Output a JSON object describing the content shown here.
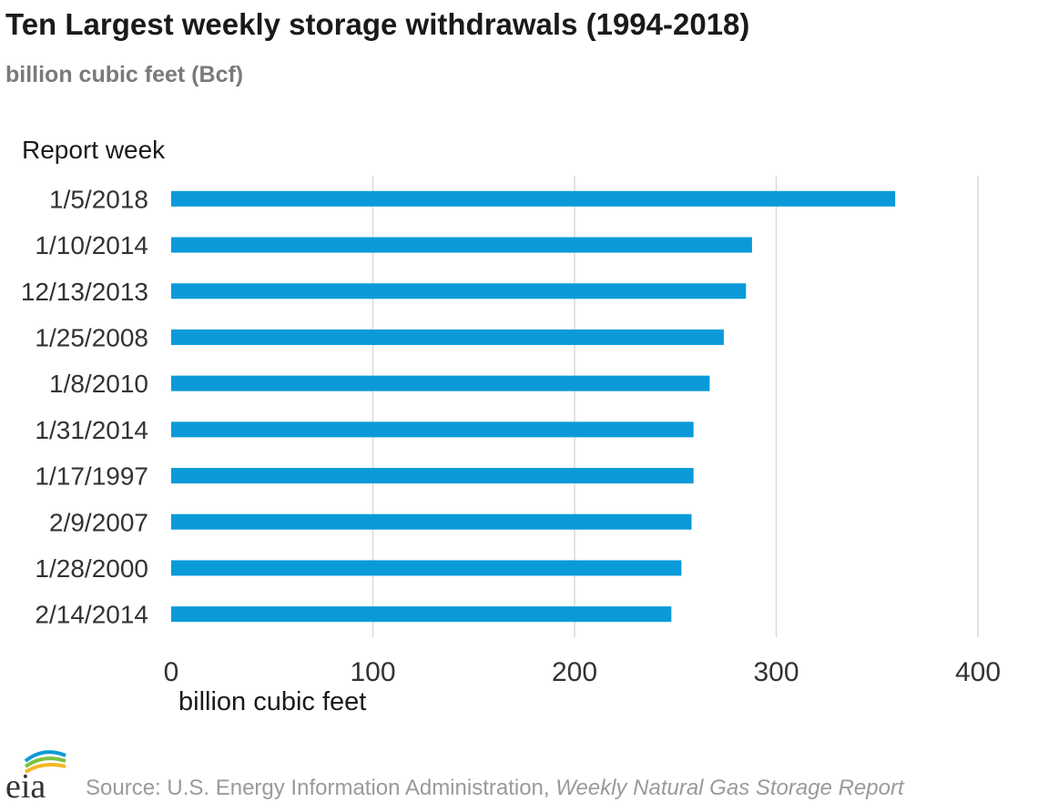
{
  "header": {
    "title": "Ten Largest weekly storage withdrawals (1994-2018)",
    "subtitle": "billion cubic feet (Bcf)"
  },
  "footer": {
    "logo_text": "eia",
    "source_prefix": "Source: U.S. Energy Information Administration, ",
    "source_report": "Weekly Natural Gas Storage Report"
  },
  "colors": {
    "bar": "#0b9ad9",
    "grid": "#d9d9d9",
    "axis_text": "#333333"
  },
  "chart_data": {
    "type": "bar",
    "orientation": "horizontal",
    "title": "Ten Largest weekly storage withdrawals (1994-2018)",
    "subtitle": "billion cubic feet (Bcf)",
    "ylabel": "Report week",
    "xlabel": "billion cubic feet",
    "categories": [
      "1/5/2018",
      "1/10/2014",
      "12/13/2013",
      "1/25/2008",
      "1/8/2010",
      "1/31/2014",
      "1/17/1997",
      "2/9/2007",
      "1/28/2000",
      "2/14/2014"
    ],
    "values": [
      359,
      288,
      285,
      274,
      267,
      259,
      259,
      258,
      253,
      248
    ],
    "xlim": [
      0,
      400
    ],
    "xticks": [
      "0",
      "100",
      "200",
      "300",
      "400"
    ],
    "grid": true,
    "legend": "none"
  }
}
